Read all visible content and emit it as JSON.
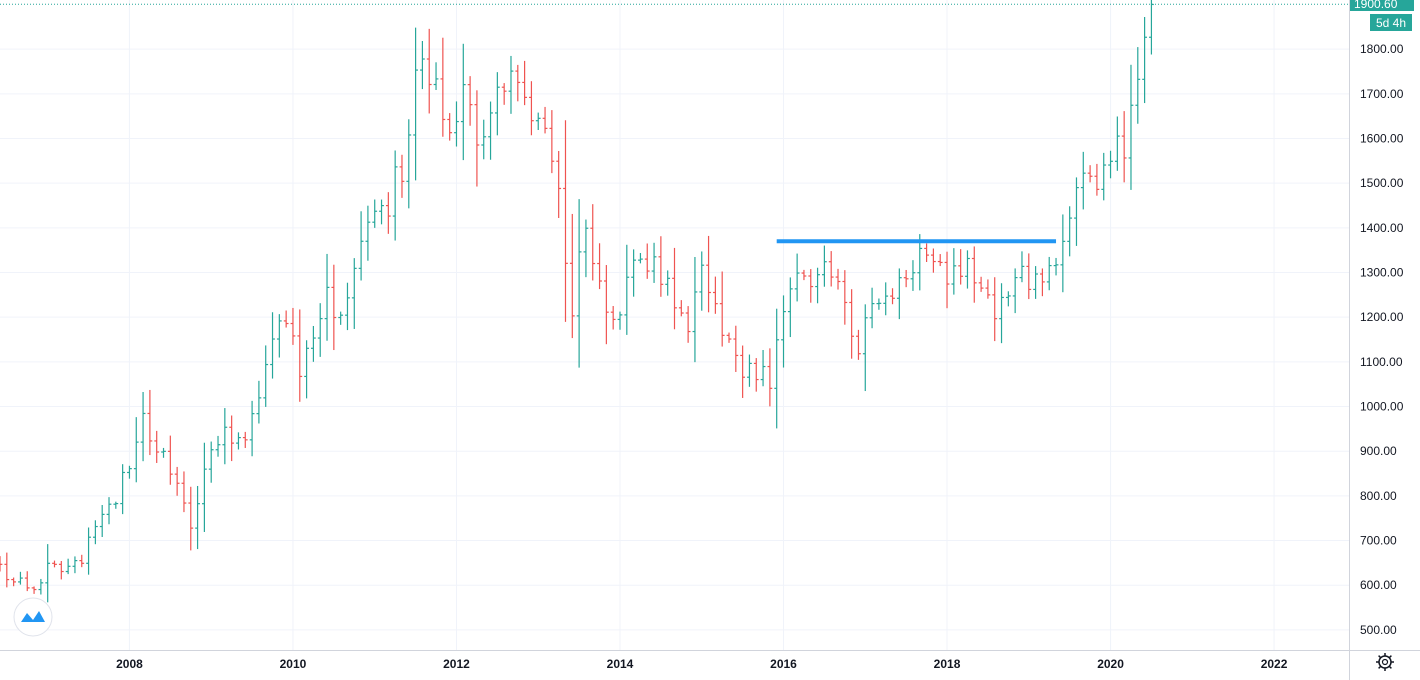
{
  "chart_data": {
    "type": "ohlc",
    "interval": "monthly",
    "ylim": [
      455,
      1910
    ],
    "y_ticks": [
      "500.00",
      "600.00",
      "700.00",
      "800.00",
      "900.00",
      "1000.00",
      "1100.00",
      "1200.00",
      "1300.00",
      "1400.00",
      "1500.00",
      "1600.00",
      "1700.00",
      "1800.00"
    ],
    "x_ticks": [
      "2008",
      "2010",
      "2012",
      "2014",
      "2016",
      "2018",
      "2020",
      "2022"
    ],
    "x_range": [
      "2006-06",
      "2022-12"
    ],
    "grid": true,
    "colors": {
      "up": "#26a69a",
      "down": "#ef5350",
      "level_line": "#2196f3",
      "last_price": "#26a69a"
    },
    "last_price": {
      "label": "1900.60",
      "value": 1900.6,
      "countdown": "5d 4h"
    },
    "horizontal_level": {
      "value": 1370,
      "start": "2015-12",
      "end": "2019-05"
    },
    "anchors": [
      [
        "2006-06",
        640
      ],
      [
        "2006-10",
        590
      ],
      [
        "2007-01",
        640
      ],
      [
        "2007-06",
        660
      ],
      [
        "2007-12",
        830
      ],
      [
        "2008-03",
        970
      ],
      [
        "2008-06",
        900
      ],
      [
        "2008-10",
        740
      ],
      [
        "2009-02",
        930
      ],
      [
        "2009-06",
        930
      ],
      [
        "2009-11",
        1180
      ],
      [
        "2010-02",
        1100
      ],
      [
        "2010-06",
        1240
      ],
      [
        "2010-07",
        1180
      ],
      [
        "2010-12",
        1420
      ],
      [
        "2011-02",
        1410
      ],
      [
        "2011-05",
        1540
      ],
      [
        "2011-08",
        1820
      ],
      [
        "2011-12",
        1570
      ],
      [
        "2012-02",
        1730
      ],
      [
        "2012-05",
        1560
      ],
      [
        "2012-09",
        1770
      ],
      [
        "2012-12",
        1670
      ],
      [
        "2013-03",
        1590
      ],
      [
        "2013-06",
        1230
      ],
      [
        "2013-08",
        1390
      ],
      [
        "2013-12",
        1200
      ],
      [
        "2014-03",
        1290
      ],
      [
        "2014-06",
        1320
      ],
      [
        "2014-11",
        1170
      ],
      [
        "2015-01",
        1280
      ],
      [
        "2015-04",
        1180
      ],
      [
        "2015-07",
        1090
      ],
      [
        "2015-11",
        1060
      ],
      [
        "2016-02",
        1240
      ],
      [
        "2016-07",
        1350
      ],
      [
        "2016-12",
        1150
      ],
      [
        "2017-04",
        1260
      ],
      [
        "2017-08",
        1320
      ],
      [
        "2017-12",
        1300
      ],
      [
        "2018-03",
        1330
      ],
      [
        "2018-08",
        1200
      ],
      [
        "2018-12",
        1280
      ],
      [
        "2019-05",
        1300
      ],
      [
        "2019-08",
        1520
      ],
      [
        "2019-12",
        1520
      ],
      [
        "2020-03",
        1580
      ],
      [
        "2020-06",
        1780
      ],
      [
        "2020-07",
        1900
      ]
    ]
  }
}
